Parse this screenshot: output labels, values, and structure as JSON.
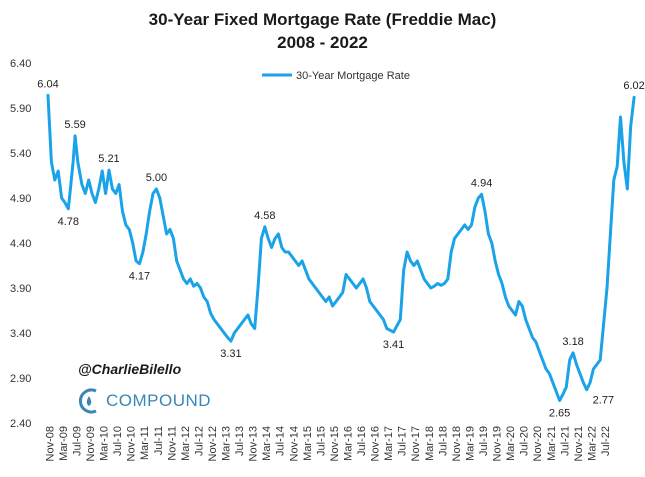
{
  "chart_data": {
    "type": "line",
    "title": "30-Year Fixed Mortgage Rate (Freddie Mac)",
    "subtitle": "2008 - 2022",
    "legend": "30-Year Mortgage Rate",
    "legend_position": "top-center",
    "ylim": [
      2.4,
      6.4
    ],
    "yticks": [
      "2.40",
      "2.90",
      "3.40",
      "3.90",
      "4.40",
      "4.90",
      "5.40",
      "5.90",
      "6.40"
    ],
    "xticks": [
      "Nov-08",
      "Mar-09",
      "Jul-09",
      "Nov-09",
      "Mar-10",
      "Jul-10",
      "Nov-10",
      "Mar-11",
      "Jul-11",
      "Nov-11",
      "Mar-12",
      "Jul-12",
      "Nov-12",
      "Mar-13",
      "Jul-13",
      "Nov-13",
      "Mar-14",
      "Jul-14",
      "Nov-14",
      "Mar-15",
      "Jul-15",
      "Nov-15",
      "Mar-16",
      "Jul-16",
      "Nov-16",
      "Mar-17",
      "Jul-17",
      "Nov-17",
      "Mar-18",
      "Jul-18",
      "Nov-18",
      "Mar-19",
      "Jul-19",
      "Nov-19",
      "Mar-20",
      "Jul-20",
      "Nov-20",
      "Mar-21",
      "Jul-21",
      "Nov-21",
      "Mar-22",
      "Jul-22"
    ],
    "series": [
      {
        "name": "30-Year Mortgage Rate",
        "color": "#1aa3e8",
        "points": [
          [
            0,
            6.04
          ],
          [
            0.5,
            5.3
          ],
          [
            1,
            5.1
          ],
          [
            1.5,
            5.2
          ],
          [
            2,
            4.9
          ],
          [
            2.5,
            4.85
          ],
          [
            3,
            4.78
          ],
          [
            3.3,
            5.0
          ],
          [
            3.7,
            5.3
          ],
          [
            4,
            5.59
          ],
          [
            4.4,
            5.3
          ],
          [
            5,
            5.05
          ],
          [
            5.5,
            4.95
          ],
          [
            6,
            5.1
          ],
          [
            6.5,
            4.95
          ],
          [
            7,
            4.85
          ],
          [
            7.5,
            5.0
          ],
          [
            8,
            5.2
          ],
          [
            8.5,
            4.95
          ],
          [
            9,
            5.21
          ],
          [
            9.5,
            5.0
          ],
          [
            10,
            4.95
          ],
          [
            10.5,
            5.05
          ],
          [
            11,
            4.75
          ],
          [
            11.5,
            4.6
          ],
          [
            12,
            4.55
          ],
          [
            12.5,
            4.4
          ],
          [
            13,
            4.2
          ],
          [
            13.5,
            4.17
          ],
          [
            14,
            4.3
          ],
          [
            14.5,
            4.5
          ],
          [
            15,
            4.75
          ],
          [
            15.5,
            4.95
          ],
          [
            16,
            5.0
          ],
          [
            16.5,
            4.9
          ],
          [
            17,
            4.7
          ],
          [
            17.5,
            4.5
          ],
          [
            18,
            4.55
          ],
          [
            18.5,
            4.45
          ],
          [
            19,
            4.2
          ],
          [
            19.5,
            4.1
          ],
          [
            20,
            4.0
          ],
          [
            20.5,
            3.95
          ],
          [
            21,
            4.0
          ],
          [
            21.5,
            3.92
          ],
          [
            22,
            3.95
          ],
          [
            22.5,
            3.9
          ],
          [
            23,
            3.8
          ],
          [
            23.5,
            3.75
          ],
          [
            24,
            3.62
          ],
          [
            24.5,
            3.55
          ],
          [
            25,
            3.5
          ],
          [
            25.5,
            3.45
          ],
          [
            26,
            3.4
          ],
          [
            26.5,
            3.35
          ],
          [
            27,
            3.31
          ],
          [
            27.5,
            3.4
          ],
          [
            28,
            3.45
          ],
          [
            28.5,
            3.5
          ],
          [
            29,
            3.55
          ],
          [
            29.5,
            3.6
          ],
          [
            30,
            3.5
          ],
          [
            30.5,
            3.45
          ],
          [
            31,
            3.9
          ],
          [
            31.5,
            4.45
          ],
          [
            32,
            4.58
          ],
          [
            32.5,
            4.45
          ],
          [
            33,
            4.35
          ],
          [
            33.5,
            4.45
          ],
          [
            34,
            4.5
          ],
          [
            34.5,
            4.35
          ],
          [
            35,
            4.3
          ],
          [
            35.5,
            4.3
          ],
          [
            36,
            4.25
          ],
          [
            36.5,
            4.2
          ],
          [
            37,
            4.15
          ],
          [
            37.5,
            4.2
          ],
          [
            38,
            4.1
          ],
          [
            38.5,
            4.0
          ],
          [
            39,
            3.95
          ],
          [
            39.5,
            3.9
          ],
          [
            40,
            3.85
          ],
          [
            40.5,
            3.8
          ],
          [
            41,
            3.75
          ],
          [
            41.5,
            3.8
          ],
          [
            42,
            3.7
          ],
          [
            42.5,
            3.75
          ],
          [
            43,
            3.8
          ],
          [
            43.5,
            3.85
          ],
          [
            44,
            4.05
          ],
          [
            44.5,
            4.0
          ],
          [
            45,
            3.95
          ],
          [
            45.5,
            3.9
          ],
          [
            46,
            3.95
          ],
          [
            46.5,
            4.0
          ],
          [
            47,
            3.9
          ],
          [
            47.5,
            3.75
          ],
          [
            48,
            3.7
          ],
          [
            48.5,
            3.65
          ],
          [
            49,
            3.6
          ],
          [
            49.5,
            3.55
          ],
          [
            50,
            3.45
          ],
          [
            50.5,
            3.43
          ],
          [
            51,
            3.41
          ],
          [
            51.5,
            3.48
          ],
          [
            52,
            3.55
          ],
          [
            52.5,
            4.1
          ],
          [
            53,
            4.3
          ],
          [
            53.5,
            4.2
          ],
          [
            54,
            4.15
          ],
          [
            54.5,
            4.2
          ],
          [
            55,
            4.1
          ],
          [
            55.5,
            4.0
          ],
          [
            56,
            3.95
          ],
          [
            56.5,
            3.9
          ],
          [
            57,
            3.92
          ],
          [
            57.5,
            3.95
          ],
          [
            58,
            3.93
          ],
          [
            58.5,
            3.95
          ],
          [
            59,
            4.0
          ],
          [
            59.5,
            4.3
          ],
          [
            60,
            4.45
          ],
          [
            60.5,
            4.5
          ],
          [
            61,
            4.55
          ],
          [
            61.5,
            4.6
          ],
          [
            62,
            4.55
          ],
          [
            62.5,
            4.6
          ],
          [
            63,
            4.8
          ],
          [
            63.5,
            4.9
          ],
          [
            64,
            4.94
          ],
          [
            64.5,
            4.75
          ],
          [
            65,
            4.5
          ],
          [
            65.5,
            4.4
          ],
          [
            66,
            4.2
          ],
          [
            66.5,
            4.05
          ],
          [
            67,
            3.95
          ],
          [
            67.5,
            3.8
          ],
          [
            68,
            3.7
          ],
          [
            68.5,
            3.65
          ],
          [
            69,
            3.6
          ],
          [
            69.5,
            3.75
          ],
          [
            70,
            3.7
          ],
          [
            70.5,
            3.55
          ],
          [
            71,
            3.45
          ],
          [
            71.5,
            3.35
          ],
          [
            72,
            3.3
          ],
          [
            72.5,
            3.2
          ],
          [
            73,
            3.1
          ],
          [
            73.5,
            3.0
          ],
          [
            74,
            2.95
          ],
          [
            74.5,
            2.85
          ],
          [
            75,
            2.75
          ],
          [
            75.5,
            2.65
          ],
          [
            76,
            2.72
          ],
          [
            76.5,
            2.8
          ],
          [
            77,
            3.1
          ],
          [
            77.5,
            3.18
          ],
          [
            78,
            3.05
          ],
          [
            78.5,
            2.95
          ],
          [
            79,
            2.85
          ],
          [
            79.5,
            2.77
          ],
          [
            80,
            2.85
          ],
          [
            80.5,
            3.0
          ],
          [
            81,
            3.05
          ],
          [
            81.5,
            3.1
          ],
          [
            82,
            3.5
          ],
          [
            82.5,
            3.9
          ],
          [
            83,
            4.5
          ],
          [
            83.5,
            5.1
          ],
          [
            84,
            5.25
          ],
          [
            84.5,
            5.8
          ],
          [
            85,
            5.3
          ],
          [
            85.5,
            5.0
          ],
          [
            86,
            5.7
          ],
          [
            86.5,
            6.02
          ]
        ]
      }
    ],
    "annotations": [
      {
        "label": "6.04",
        "x": 0,
        "y": 6.04,
        "pos": "above"
      },
      {
        "label": "5.59",
        "x": 4,
        "y": 5.59,
        "pos": "above"
      },
      {
        "label": "4.78",
        "x": 3,
        "y": 4.78,
        "pos": "below"
      },
      {
        "label": "5.21",
        "x": 9,
        "y": 5.21,
        "pos": "above"
      },
      {
        "label": "4.17",
        "x": 13.5,
        "y": 4.17,
        "pos": "below"
      },
      {
        "label": "5.00",
        "x": 16,
        "y": 5.0,
        "pos": "above"
      },
      {
        "label": "3.31",
        "x": 27,
        "y": 3.31,
        "pos": "below"
      },
      {
        "label": "4.58",
        "x": 32,
        "y": 4.58,
        "pos": "above"
      },
      {
        "label": "3.41",
        "x": 51,
        "y": 3.41,
        "pos": "below"
      },
      {
        "label": "4.94",
        "x": 64,
        "y": 4.94,
        "pos": "above"
      },
      {
        "label": "2.65",
        "x": 75.5,
        "y": 2.65,
        "pos": "below"
      },
      {
        "label": "3.18",
        "x": 77.5,
        "y": 3.18,
        "pos": "above"
      },
      {
        "label": "2.77",
        "x": 79.5,
        "y": 2.77,
        "pos": "below-right"
      },
      {
        "label": "6.02",
        "x": 86.5,
        "y": 6.02,
        "pos": "above"
      }
    ]
  },
  "branding": {
    "handle": "@CharlieBilello",
    "logo_text": "COMPOUND"
  }
}
